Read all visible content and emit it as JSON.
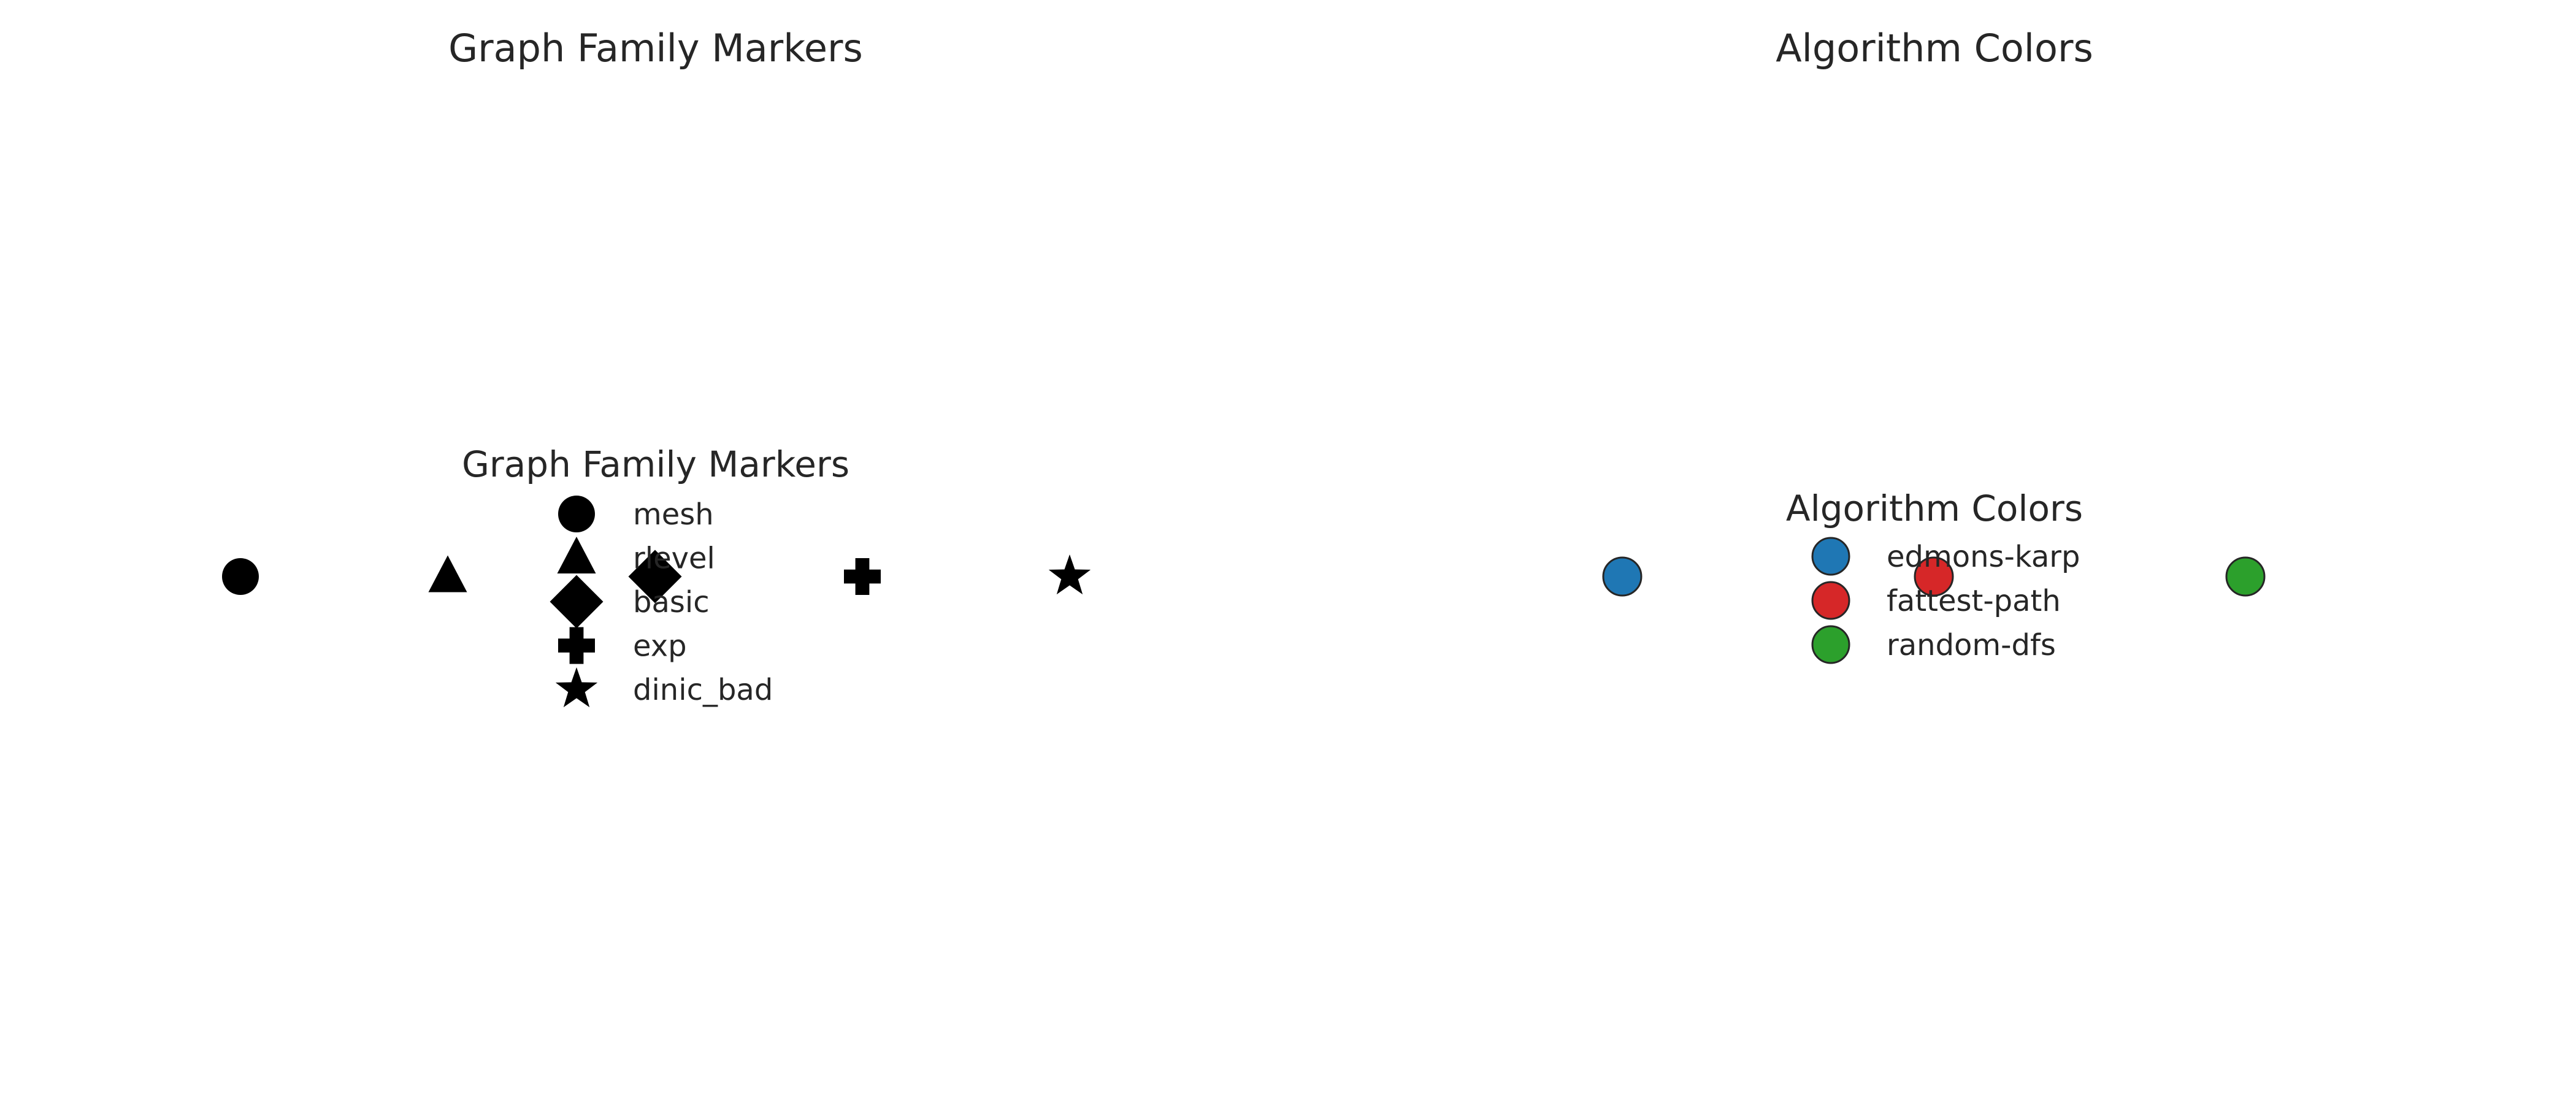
{
  "chart_data": [
    {
      "type": "scatter",
      "title": "Graph Family Markers",
      "xlabel": "",
      "ylabel": "",
      "axes_visible": false,
      "grid": false,
      "legend": {
        "title": "Graph Family Markers",
        "placement": "center",
        "entries": [
          {
            "label": "mesh",
            "marker": "circle",
            "color": "#000000"
          },
          {
            "label": "rlevel",
            "marker": "triangle",
            "color": "#000000"
          },
          {
            "label": "basic",
            "marker": "diamond",
            "color": "#000000"
          },
          {
            "label": "exp",
            "marker": "plus",
            "color": "#000000"
          },
          {
            "label": "dinic_bad",
            "marker": "star",
            "color": "#000000"
          }
        ]
      },
      "series": [
        {
          "marker": "circle",
          "color": "#000000",
          "points": [
            {
              "x": 0,
              "y": 0
            }
          ]
        },
        {
          "marker": "triangle",
          "color": "#000000",
          "points": [
            {
              "x": 1,
              "y": 0
            }
          ]
        },
        {
          "marker": "diamond",
          "color": "#000000",
          "points": [
            {
              "x": 2,
              "y": 0
            }
          ]
        },
        {
          "marker": "plus",
          "color": "#000000",
          "points": [
            {
              "x": 3,
              "y": 0
            }
          ]
        },
        {
          "marker": "star",
          "color": "#000000",
          "points": [
            {
              "x": 4,
              "y": 0
            }
          ]
        }
      ]
    },
    {
      "type": "scatter",
      "title": "Algorithm Colors",
      "xlabel": "",
      "ylabel": "",
      "axes_visible": false,
      "grid": false,
      "legend": {
        "title": "Algorithm Colors",
        "placement": "center",
        "entries": [
          {
            "label": "edmons-karp",
            "marker": "circle",
            "color": "#1f77b4"
          },
          {
            "label": "fattest-path",
            "marker": "circle",
            "color": "#d62728"
          },
          {
            "label": "random-dfs",
            "marker": "circle",
            "color": "#2ca02c"
          }
        ]
      },
      "series": [
        {
          "marker": "circle",
          "color": "#1f77b4",
          "points": [
            {
              "x": 0,
              "y": 0
            }
          ]
        },
        {
          "marker": "circle",
          "color": "#d62728",
          "points": [
            {
              "x": 1,
              "y": 0
            }
          ]
        },
        {
          "marker": "circle",
          "color": "#2ca02c",
          "points": [
            {
              "x": 2,
              "y": 0
            }
          ]
        }
      ]
    }
  ]
}
